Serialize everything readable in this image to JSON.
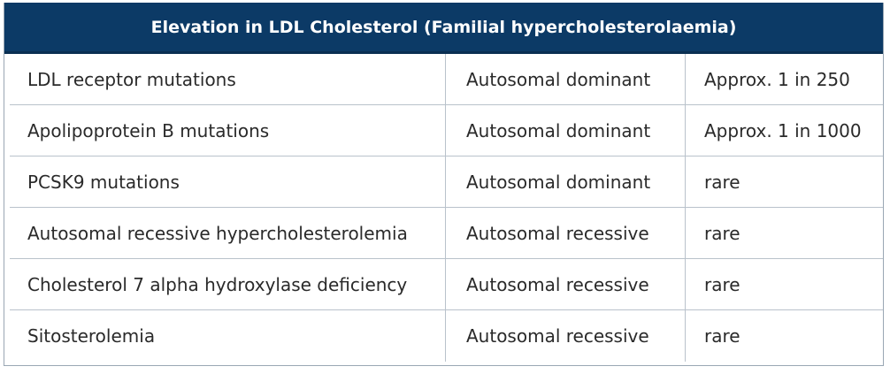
{
  "table": {
    "title": "Elevation in LDL Cholesterol (Familial hypercholesterolaemia)",
    "rows": [
      {
        "condition": "LDL receptor mutations",
        "inheritance": "Autosomal dominant",
        "frequency": "Approx. 1 in 250"
      },
      {
        "condition": "Apolipoprotein B mutations",
        "inheritance": "Autosomal dominant",
        "frequency": "Approx. 1 in 1000"
      },
      {
        "condition": "PCSK9 mutations",
        "inheritance": "Autosomal dominant",
        "frequency": "rare"
      },
      {
        "condition": "Autosomal recessive hypercholesterolemia",
        "inheritance": "Autosomal recessive",
        "frequency": "rare"
      },
      {
        "condition": "Cholesterol 7 alpha hydroxylase deficiency",
        "inheritance": "Autosomal recessive",
        "frequency": "rare"
      },
      {
        "condition": "Sitosterolemia",
        "inheritance": "Autosomal recessive",
        "frequency": "rare"
      }
    ]
  },
  "colors": {
    "header_bg": "#0c3a66",
    "header_text": "#ffffff",
    "border": "#b9c2cb",
    "text": "#2a2a2a"
  }
}
